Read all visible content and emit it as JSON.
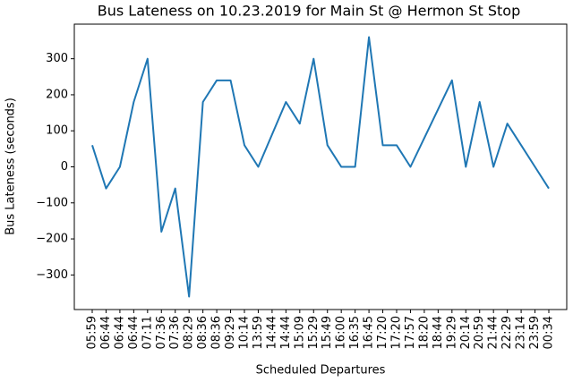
{
  "chart_data": {
    "type": "line",
    "title": "Bus Lateness on 10.23.2019 for Main St @ Hermon St Stop",
    "x_label": "Scheduled Departures",
    "y_label": "Bus Lateness (seconds)",
    "categories": [
      "05:59",
      "06:44",
      "06:44",
      "06:44",
      "07:11",
      "07:36",
      "07:36",
      "08:29",
      "08:36",
      "08:36",
      "09:29",
      "10:14",
      "13:59",
      "14:44",
      "14:44",
      "15:09",
      "15:29",
      "15:49",
      "16:00",
      "16:35",
      "16:45",
      "17:20",
      "17:20",
      "17:57",
      "18:20",
      "18:44",
      "19:29",
      "20:14",
      "20:59",
      "21:44",
      "22:29",
      "23:14",
      "23:59",
      "00:34"
    ],
    "series": [
      {
        "color": "#1f77b4",
        "values": [
          60,
          -60,
          0,
          180,
          300,
          -180,
          -60,
          -360,
          180,
          240,
          240,
          60,
          0,
          90,
          180,
          120,
          300,
          60,
          0,
          0,
          360,
          60,
          60,
          0,
          80,
          160,
          240,
          0,
          180,
          0,
          120,
          60,
          0,
          -60
        ]
      }
    ],
    "ylim": [
      -396,
      396
    ],
    "yticks": [
      {
        "value": -300,
        "label": "−300"
      },
      {
        "value": -200,
        "label": "−200"
      },
      {
        "value": -100,
        "label": "−100"
      },
      0,
      100,
      200,
      300
    ]
  }
}
